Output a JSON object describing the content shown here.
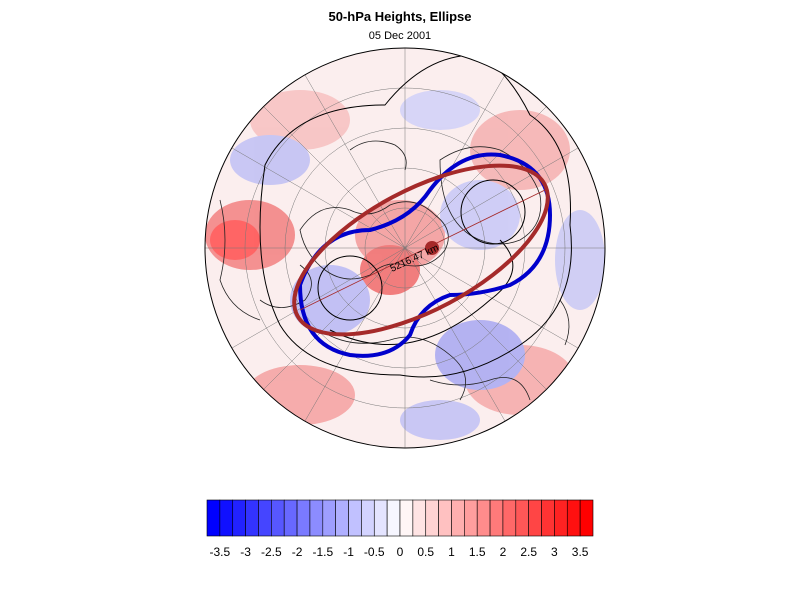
{
  "title": "50-hPa Heights, Ellipse",
  "subtitle": "05 Dec 2001",
  "annotation": {
    "distance_label": "5216.47 km"
  },
  "colorbar": {
    "labels": [
      "-3.5",
      "-3",
      "-2.5",
      "-2",
      "-1.5",
      "-1",
      "-0.5",
      "0",
      "0.5",
      "1",
      "1.5",
      "2",
      "2.5",
      "3",
      "3.5"
    ],
    "min": -3.75,
    "max": 3.75,
    "step": 0.25
  },
  "colors": {
    "negative": "#0000ff",
    "positive": "#ff0000",
    "ellipse": "#a52a2a",
    "contour": "#0000cc",
    "coast": "#222222",
    "grid": "#666666"
  }
}
